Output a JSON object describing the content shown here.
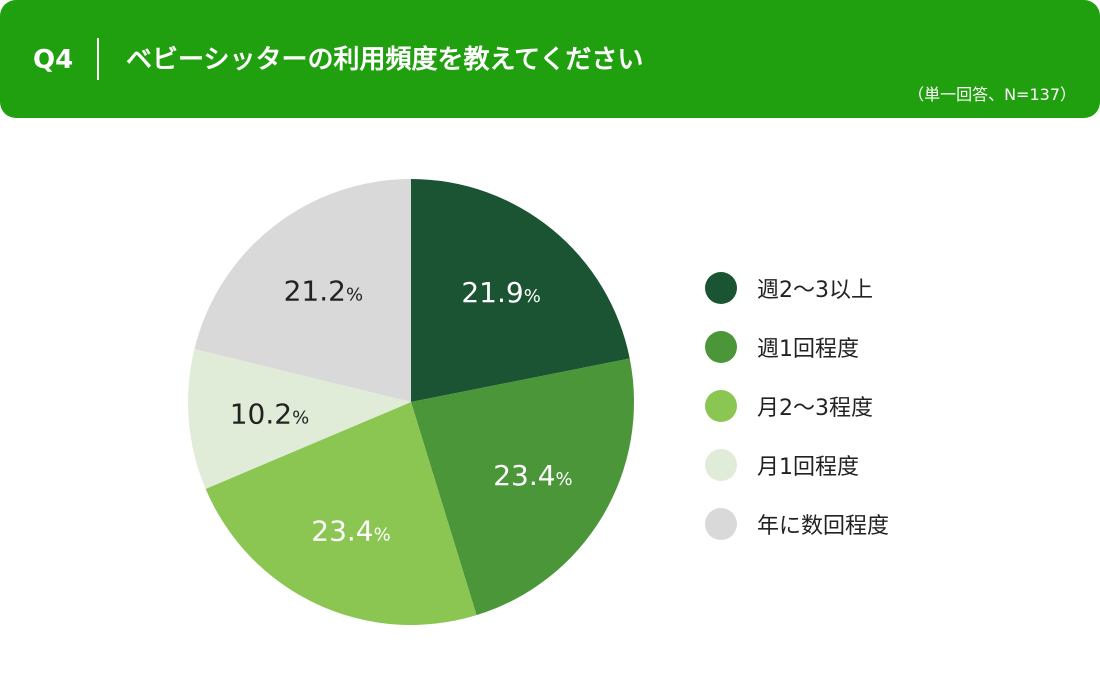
{
  "header": {
    "question": "Q4",
    "title": "ベビーシッターの利用頻度を教えてください",
    "note": "（単一回答、N=137）"
  },
  "chart_data": {
    "type": "pie",
    "unit": "%",
    "slices": [
      {
        "label": "週2〜3以上",
        "value": 21.9,
        "display": "21.9",
        "color": "#1b5432",
        "text_color": "#ffffff"
      },
      {
        "label": "週1回程度",
        "value": 23.4,
        "display": "23.4",
        "color": "#4a9639",
        "text_color": "#ffffff"
      },
      {
        "label": "月2〜3程度",
        "value": 23.4,
        "display": "23.4",
        "color": "#8bc653",
        "text_color": "#ffffff"
      },
      {
        "label": "月1回程度",
        "value": 10.2,
        "display": "10.2",
        "color": "#e1ecd8",
        "text_color": "#222222"
      },
      {
        "label": "年に数回程度",
        "value": 21.2,
        "display": "21.2",
        "color": "#d9d9d9",
        "text_color": "#222222"
      }
    ],
    "start_angle": "12 o'clock",
    "direction": "clockwise",
    "legend_position": "right"
  }
}
